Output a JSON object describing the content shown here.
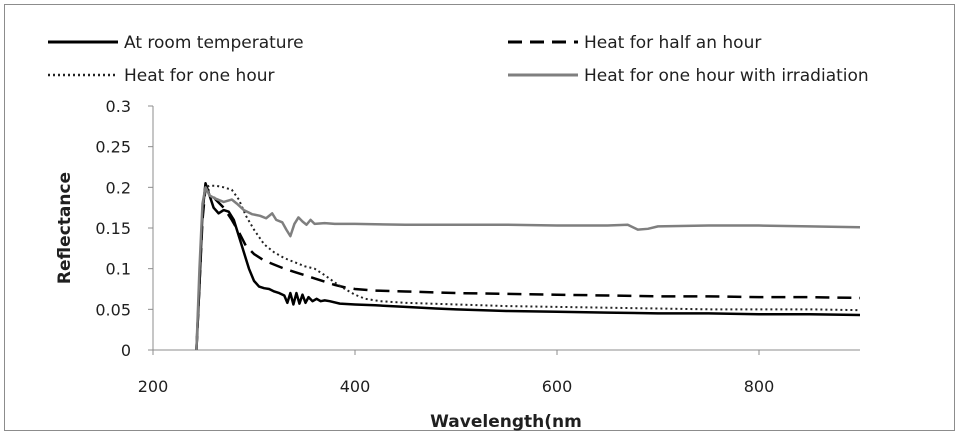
{
  "chart_data": {
    "type": "line",
    "title": "",
    "xlabel": "Wavelength(nm",
    "ylabel": "Reflectance",
    "xlim": [
      200,
      900
    ],
    "ylim": [
      0,
      0.3
    ],
    "xticks": [
      {
        "value": 200,
        "label": "200"
      },
      {
        "value": 400,
        "label": "400"
      },
      {
        "value": 600,
        "label": "600"
      },
      {
        "value": 800,
        "label": "800"
      }
    ],
    "yticks": [
      {
        "value": 0,
        "label": "0"
      },
      {
        "value": 0.05,
        "label": "0.05"
      },
      {
        "value": 0.1,
        "label": "0.1"
      },
      {
        "value": 0.15,
        "label": "0.15"
      },
      {
        "value": 0.2,
        "label": "0.2"
      },
      {
        "value": 0.25,
        "label": "0.25"
      },
      {
        "value": 0.3,
        "label": "0.3"
      }
    ],
    "grid": false,
    "legend_position": "top",
    "series": [
      {
        "name": "At room temperature",
        "color": "#000000",
        "dash": "solid",
        "points": [
          [
            243,
            0.0
          ],
          [
            246,
            0.08
          ],
          [
            249,
            0.17
          ],
          [
            252,
            0.205
          ],
          [
            256,
            0.19
          ],
          [
            260,
            0.175
          ],
          [
            265,
            0.168
          ],
          [
            270,
            0.172
          ],
          [
            275,
            0.17
          ],
          [
            280,
            0.16
          ],
          [
            285,
            0.14
          ],
          [
            290,
            0.12
          ],
          [
            295,
            0.1
          ],
          [
            300,
            0.085
          ],
          [
            305,
            0.078
          ],
          [
            310,
            0.076
          ],
          [
            315,
            0.075
          ],
          [
            320,
            0.072
          ],
          [
            325,
            0.07
          ],
          [
            330,
            0.067
          ],
          [
            333,
            0.058
          ],
          [
            336,
            0.07
          ],
          [
            339,
            0.056
          ],
          [
            342,
            0.07
          ],
          [
            345,
            0.057
          ],
          [
            348,
            0.068
          ],
          [
            351,
            0.058
          ],
          [
            354,
            0.065
          ],
          [
            358,
            0.06
          ],
          [
            362,
            0.063
          ],
          [
            366,
            0.06
          ],
          [
            370,
            0.061
          ],
          [
            375,
            0.06
          ],
          [
            385,
            0.057
          ],
          [
            400,
            0.056
          ],
          [
            420,
            0.055
          ],
          [
            450,
            0.053
          ],
          [
            480,
            0.051
          ],
          [
            500,
            0.05
          ],
          [
            550,
            0.048
          ],
          [
            600,
            0.047
          ],
          [
            650,
            0.046
          ],
          [
            700,
            0.045
          ],
          [
            750,
            0.045
          ],
          [
            800,
            0.044
          ],
          [
            850,
            0.044
          ],
          [
            900,
            0.043
          ]
        ]
      },
      {
        "name": "Heat for half an hour",
        "color": "#000000",
        "dash": "long-dash",
        "points": [
          [
            243,
            0.0
          ],
          [
            246,
            0.08
          ],
          [
            249,
            0.16
          ],
          [
            252,
            0.2
          ],
          [
            256,
            0.195
          ],
          [
            262,
            0.185
          ],
          [
            270,
            0.175
          ],
          [
            278,
            0.16
          ],
          [
            285,
            0.145
          ],
          [
            292,
            0.128
          ],
          [
            300,
            0.118
          ],
          [
            310,
            0.11
          ],
          [
            320,
            0.105
          ],
          [
            330,
            0.1
          ],
          [
            340,
            0.096
          ],
          [
            350,
            0.092
          ],
          [
            360,
            0.088
          ],
          [
            370,
            0.084
          ],
          [
            380,
            0.08
          ],
          [
            390,
            0.077
          ],
          [
            400,
            0.075
          ],
          [
            420,
            0.073
          ],
          [
            450,
            0.072
          ],
          [
            500,
            0.07
          ],
          [
            550,
            0.069
          ],
          [
            600,
            0.068
          ],
          [
            650,
            0.067
          ],
          [
            700,
            0.066
          ],
          [
            750,
            0.066
          ],
          [
            800,
            0.065
          ],
          [
            850,
            0.065
          ],
          [
            900,
            0.064
          ]
        ]
      },
      {
        "name": "Heat for one hour",
        "color": "#222222",
        "dash": "dotted",
        "points": [
          [
            243,
            0.0
          ],
          [
            246,
            0.09
          ],
          [
            249,
            0.17
          ],
          [
            252,
            0.2
          ],
          [
            256,
            0.202
          ],
          [
            262,
            0.202
          ],
          [
            270,
            0.2
          ],
          [
            278,
            0.197
          ],
          [
            285,
            0.185
          ],
          [
            292,
            0.165
          ],
          [
            300,
            0.148
          ],
          [
            310,
            0.13
          ],
          [
            320,
            0.12
          ],
          [
            330,
            0.113
          ],
          [
            340,
            0.108
          ],
          [
            350,
            0.103
          ],
          [
            360,
            0.1
          ],
          [
            370,
            0.092
          ],
          [
            380,
            0.083
          ],
          [
            390,
            0.075
          ],
          [
            400,
            0.068
          ],
          [
            410,
            0.063
          ],
          [
            425,
            0.06
          ],
          [
            450,
            0.058
          ],
          [
            500,
            0.056
          ],
          [
            550,
            0.054
          ],
          [
            600,
            0.053
          ],
          [
            650,
            0.052
          ],
          [
            700,
            0.051
          ],
          [
            750,
            0.05
          ],
          [
            800,
            0.05
          ],
          [
            850,
            0.05
          ],
          [
            900,
            0.049
          ]
        ]
      },
      {
        "name": "Heat for one hour with irradiation",
        "color": "#7f7f7f",
        "dash": "solid",
        "points": [
          [
            243,
            0.0
          ],
          [
            246,
            0.1
          ],
          [
            249,
            0.18
          ],
          [
            252,
            0.2
          ],
          [
            256,
            0.19
          ],
          [
            262,
            0.186
          ],
          [
            270,
            0.182
          ],
          [
            278,
            0.185
          ],
          [
            283,
            0.18
          ],
          [
            290,
            0.172
          ],
          [
            298,
            0.167
          ],
          [
            306,
            0.165
          ],
          [
            312,
            0.162
          ],
          [
            318,
            0.168
          ],
          [
            322,
            0.16
          ],
          [
            328,
            0.157
          ],
          [
            332,
            0.148
          ],
          [
            336,
            0.14
          ],
          [
            340,
            0.155
          ],
          [
            344,
            0.163
          ],
          [
            348,
            0.158
          ],
          [
            352,
            0.154
          ],
          [
            356,
            0.16
          ],
          [
            360,
            0.155
          ],
          [
            370,
            0.156
          ],
          [
            380,
            0.155
          ],
          [
            400,
            0.155
          ],
          [
            450,
            0.154
          ],
          [
            500,
            0.154
          ],
          [
            550,
            0.154
          ],
          [
            600,
            0.153
          ],
          [
            650,
            0.153
          ],
          [
            670,
            0.154
          ],
          [
            680,
            0.148
          ],
          [
            690,
            0.149
          ],
          [
            700,
            0.152
          ],
          [
            750,
            0.153
          ],
          [
            800,
            0.153
          ],
          [
            850,
            0.152
          ],
          [
            900,
            0.151
          ]
        ]
      }
    ]
  }
}
